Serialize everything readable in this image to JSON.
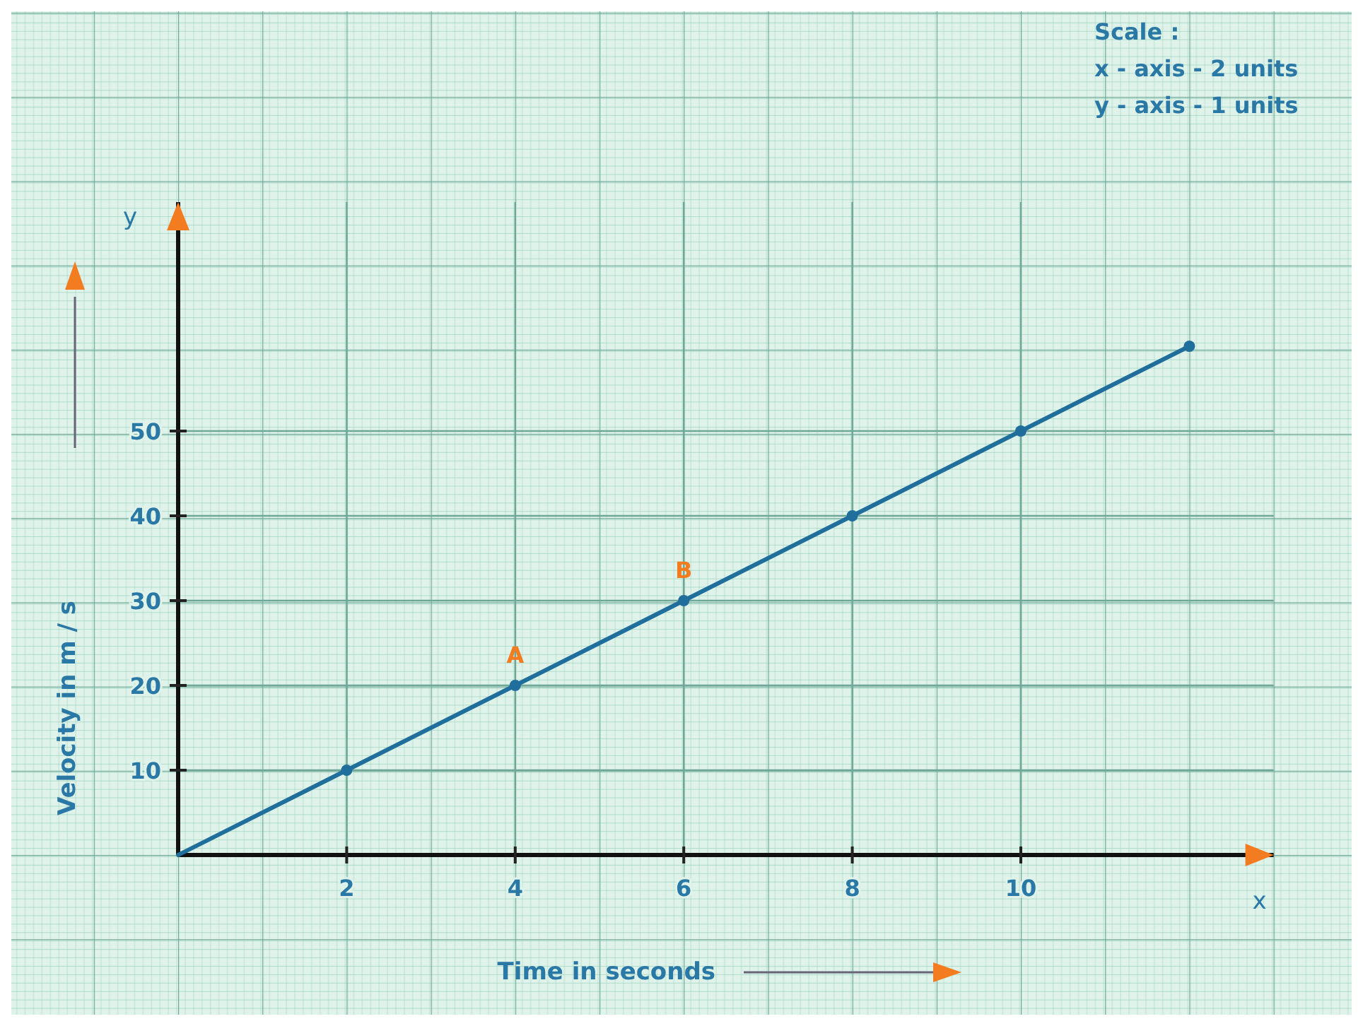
{
  "chart_data": {
    "type": "line",
    "xlabel": "Time in seconds",
    "ylabel": "Velocity in m / s",
    "x": [
      0,
      2,
      4,
      6,
      8,
      10,
      12
    ],
    "series": [
      {
        "color": "#1f6e9c",
        "values": [
          0,
          10,
          20,
          30,
          40,
          50,
          60
        ]
      }
    ],
    "xlim": [
      0,
      13
    ],
    "ylim": [
      0,
      77
    ],
    "xticks": [
      2,
      4,
      6,
      8,
      10
    ],
    "yticks": [
      10,
      20,
      30,
      40,
      50
    ],
    "grid": true,
    "marker": "circle",
    "line_style": "solid",
    "annotations": [
      "Scale :",
      "x - axis - 2 units",
      "y - axis - 1 units",
      {
        "text": "A",
        "x": 4,
        "y": 20
      },
      {
        "text": "B",
        "x": 6,
        "y": 30
      },
      "x",
      "y"
    ]
  }
}
